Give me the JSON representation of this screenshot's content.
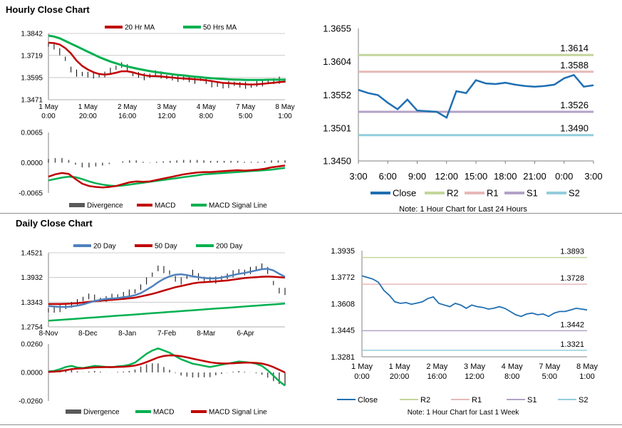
{
  "hourly_title": "Hourly Close Chart",
  "daily_title": "Daily Close Chart",
  "colors": {
    "close": "#1f6fb2",
    "r2": "#c3d69b",
    "r1": "#e6b9b8",
    "s1": "#b3a2c7",
    "s2": "#93cddd",
    "red": "#c00000",
    "green": "#00b050",
    "blue": "#4f81bd",
    "bars": "#000000",
    "divergence": "#595959"
  },
  "chart_data": [
    {
      "id": "hourly_price",
      "type": "line",
      "legend": [
        "20 Hr MA",
        "50 Hrs MA"
      ],
      "yticks": [
        "1.3842",
        "1.3719",
        "1.3595",
        "1.3471"
      ],
      "ylim": [
        1.3471,
        1.3842
      ],
      "xticks": [
        [
          "1 May",
          "0:00"
        ],
        [
          "1 May",
          "20:00"
        ],
        [
          "2 May",
          "16:00"
        ],
        [
          "3 May",
          "12:00"
        ],
        [
          "4 May",
          "8:00"
        ],
        [
          "7 May",
          "5:00"
        ],
        [
          "8 May",
          "1:00"
        ]
      ],
      "series": [
        {
          "name": "Close",
          "values": [
            1.378,
            1.3768,
            1.374,
            1.37,
            1.364,
            1.362,
            1.3615,
            1.3612,
            1.361,
            1.3608,
            1.3612,
            1.363,
            1.365,
            1.3665,
            1.365,
            1.3615,
            1.361,
            1.36,
            1.3605,
            1.362,
            1.361,
            1.3598,
            1.3595,
            1.359,
            1.3592,
            1.3585,
            1.358,
            1.3588,
            1.3575,
            1.356,
            1.3555,
            1.355,
            1.3556,
            1.356,
            1.3555,
            1.3552,
            1.355,
            1.356,
            1.3565,
            1.357,
            1.3575,
            1.358,
            1.3578
          ]
        },
        {
          "name": "20 Hr MA",
          "values": [
            1.379,
            1.3788,
            1.378,
            1.376,
            1.373,
            1.369,
            1.366,
            1.364,
            1.3625,
            1.3615,
            1.3612,
            1.3615,
            1.3622,
            1.363,
            1.363,
            1.3624,
            1.3615,
            1.3608,
            1.3604,
            1.3603,
            1.3602,
            1.3598,
            1.3595,
            1.3592,
            1.359,
            1.3588,
            1.3585,
            1.3583,
            1.358,
            1.3575,
            1.357,
            1.3565,
            1.3563,
            1.3561,
            1.3559,
            1.3557,
            1.3556,
            1.3557,
            1.356,
            1.3563,
            1.3566,
            1.357,
            1.3572
          ]
        },
        {
          "name": "50 Hrs MA",
          "values": [
            1.383,
            1.3825,
            1.3815,
            1.38,
            1.3785,
            1.377,
            1.3755,
            1.374,
            1.3725,
            1.371,
            1.3697,
            1.3685,
            1.3675,
            1.3665,
            1.3657,
            1.365,
            1.3643,
            1.3637,
            1.3631,
            1.3626,
            1.3622,
            1.3618,
            1.3614,
            1.361,
            1.3607,
            1.3603,
            1.36,
            1.3597,
            1.3594,
            1.3591,
            1.3589,
            1.3587,
            1.3585,
            1.3584,
            1.3583,
            1.3582,
            1.3582,
            1.3582,
            1.3582,
            1.3583,
            1.3583,
            1.3583,
            1.3583
          ]
        }
      ]
    },
    {
      "id": "hourly_macd",
      "type": "line",
      "legend": [
        "Divergence",
        "MACD",
        "MACD Signal Line"
      ],
      "yticks": [
        "0.0065",
        "0.0000",
        "-0.0065"
      ],
      "ylim": [
        -0.0065,
        0.0065
      ],
      "series": [
        {
          "name": "MACD",
          "values": [
            -0.003,
            -0.0025,
            -0.0022,
            -0.0024,
            -0.0035,
            -0.0045,
            -0.005,
            -0.0052,
            -0.0053,
            -0.0052,
            -0.005,
            -0.0046,
            -0.0042,
            -0.004,
            -0.0041,
            -0.004,
            -0.0037,
            -0.0034,
            -0.0031,
            -0.0028,
            -0.0025,
            -0.0023,
            -0.0021,
            -0.002,
            -0.002,
            -0.0019,
            -0.0018,
            -0.0017,
            -0.0016,
            -0.0017,
            -0.0016,
            -0.0015,
            -0.0013,
            -0.001,
            -0.0008,
            -0.0006
          ]
        },
        {
          "name": "MACD Signal Line",
          "values": [
            -0.0038,
            -0.0035,
            -0.0032,
            -0.003,
            -0.0031,
            -0.0035,
            -0.004,
            -0.0044,
            -0.0047,
            -0.0049,
            -0.005,
            -0.0049,
            -0.0047,
            -0.0045,
            -0.0043,
            -0.0041,
            -0.0039,
            -0.0037,
            -0.0035,
            -0.0033,
            -0.0031,
            -0.0029,
            -0.0027,
            -0.0025,
            -0.0024,
            -0.0023,
            -0.0022,
            -0.0021,
            -0.002,
            -0.0019,
            -0.0018,
            -0.0017,
            -0.0016,
            -0.0015,
            -0.0013,
            -0.0011
          ]
        },
        {
          "name": "Divergence",
          "values": [
            0.0008,
            0.001,
            0.001,
            0.0006,
            -0.0004,
            -0.001,
            -0.001,
            -0.0008,
            -0.0006,
            -0.0003,
            0.0,
            0.0003,
            0.0005,
            0.0005,
            0.0002,
            0.0001,
            0.0002,
            0.0003,
            0.0004,
            0.0005,
            0.0006,
            0.0006,
            0.0006,
            0.0005,
            0.0004,
            0.0004,
            0.0004,
            0.0004,
            0.0004,
            0.0002,
            0.0002,
            0.0002,
            0.0003,
            0.0005,
            0.0005,
            0.0005
          ]
        }
      ]
    },
    {
      "id": "hourly_24h",
      "type": "line",
      "yticks": [
        "1.3655",
        "1.3604",
        "1.3552",
        "1.3501",
        "1.3450"
      ],
      "ylim": [
        1.345,
        1.3655
      ],
      "xticks": [
        "3:00",
        "6:00",
        "9:00",
        "12:00",
        "15:00",
        "18:00",
        "21:00",
        "0:00",
        "3:00"
      ],
      "levels": [
        {
          "name": "R2",
          "value": 1.3614,
          "label": "1.3614"
        },
        {
          "name": "R1",
          "value": 1.3588,
          "label": "1.3588"
        },
        {
          "name": "S1",
          "value": 1.3526,
          "label": "1.3526"
        },
        {
          "name": "S2",
          "value": 1.349,
          "label": "1.3490"
        }
      ],
      "series": [
        {
          "name": "Close",
          "values": [
            1.356,
            1.3555,
            1.3552,
            1.354,
            1.353,
            1.3545,
            1.3528,
            1.3527,
            1.3526,
            1.3517,
            1.3558,
            1.3555,
            1.3575,
            1.357,
            1.3569,
            1.3571,
            1.3568,
            1.3566,
            1.3565,
            1.3566,
            1.3568,
            1.3578,
            1.3583,
            1.3565,
            1.3567
          ]
        }
      ],
      "legend": [
        "Close",
        "R2",
        "R1",
        "S1",
        "S2"
      ],
      "note": "Note: 1 Hour Chart for Last 24 Hours"
    },
    {
      "id": "daily_price",
      "type": "line",
      "legend": [
        "20 Day",
        "50 Day",
        "200 Day"
      ],
      "yticks": [
        "1.4521",
        "1.3932",
        "1.3343",
        "1.2754"
      ],
      "ylim": [
        1.2754,
        1.4521
      ],
      "xticks": [
        "8-Nov",
        "8-Dec",
        "8-Jan",
        "7-Feb",
        "8-Mar",
        "6-Apr"
      ],
      "series": [
        {
          "name": "Close",
          "values": [
            1.315,
            1.316,
            1.319,
            1.323,
            1.328,
            1.333,
            1.342,
            1.348,
            1.344,
            1.34,
            1.342,
            1.346,
            1.348,
            1.352,
            1.356,
            1.36,
            1.37,
            1.385,
            1.4,
            1.415,
            1.412,
            1.405,
            1.39,
            1.385,
            1.395,
            1.405,
            1.395,
            1.39,
            1.388,
            1.387,
            1.392,
            1.396,
            1.402,
            1.408,
            1.405,
            1.41,
            1.415,
            1.42,
            1.41,
            1.38,
            1.362,
            1.36
          ]
        },
        {
          "name": "20 Day",
          "values": [
            1.325,
            1.324,
            1.323,
            1.323,
            1.324,
            1.326,
            1.329,
            1.333,
            1.337,
            1.34,
            1.342,
            1.343,
            1.344,
            1.346,
            1.348,
            1.351,
            1.356,
            1.364,
            1.372,
            1.382,
            1.39,
            1.396,
            1.4,
            1.401,
            1.399,
            1.396,
            1.394,
            1.392,
            1.391,
            1.391,
            1.393,
            1.396,
            1.399,
            1.402,
            1.404,
            1.407,
            1.41,
            1.413,
            1.414,
            1.41,
            1.402,
            1.395
          ]
        },
        {
          "name": "50 Day",
          "values": [
            1.33,
            1.33,
            1.33,
            1.3305,
            1.331,
            1.332,
            1.3335,
            1.335,
            1.3365,
            1.338,
            1.339,
            1.34,
            1.341,
            1.342,
            1.3435,
            1.345,
            1.348,
            1.351,
            1.354,
            1.358,
            1.362,
            1.366,
            1.37,
            1.373,
            1.376,
            1.379,
            1.381,
            1.382,
            1.383,
            1.384,
            1.385,
            1.386,
            1.388,
            1.39,
            1.392,
            1.393,
            1.394,
            1.395,
            1.3955,
            1.395,
            1.394,
            1.393
          ]
        },
        {
          "name": "200 Day",
          "values": [
            1.29,
            1.291,
            1.292,
            1.293,
            1.294,
            1.295,
            1.296,
            1.297,
            1.298,
            1.299,
            1.3,
            1.301,
            1.302,
            1.303,
            1.304,
            1.305,
            1.306,
            1.307,
            1.308,
            1.309,
            1.31,
            1.311,
            1.312,
            1.313,
            1.314,
            1.315,
            1.316,
            1.317,
            1.318,
            1.319,
            1.32,
            1.321,
            1.322,
            1.323,
            1.324,
            1.325,
            1.326,
            1.327,
            1.328,
            1.329,
            1.33,
            1.331
          ]
        }
      ]
    },
    {
      "id": "daily_macd",
      "type": "line",
      "legend": [
        "Divergence",
        "MACD",
        "MACD Signal Line"
      ],
      "yticks": [
        "0.0260",
        "0.0000",
        "-0.0260"
      ],
      "ylim": [
        -0.026,
        0.026
      ],
      "series": [
        {
          "name": "MACD",
          "values": [
            0.001,
            0.0015,
            0.003,
            0.005,
            0.006,
            0.0045,
            0.004,
            0.005,
            0.006,
            0.0055,
            0.005,
            0.0048,
            0.0055,
            0.006,
            0.007,
            0.009,
            0.013,
            0.017,
            0.02,
            0.022,
            0.02,
            0.018,
            0.015,
            0.012,
            0.01,
            0.008,
            0.007,
            0.006,
            0.005,
            0.006,
            0.007,
            0.008,
            0.009,
            0.01,
            0.0095,
            0.009,
            0.008,
            0.006,
            0.002,
            -0.003,
            -0.008,
            -0.012
          ]
        },
        {
          "name": "MACD Signal Line",
          "values": [
            0.0005,
            0.0007,
            0.0012,
            0.002,
            0.003,
            0.0035,
            0.0038,
            0.0042,
            0.0046,
            0.0048,
            0.0049,
            0.0049,
            0.005,
            0.0052,
            0.0056,
            0.0063,
            0.0076,
            0.0095,
            0.0116,
            0.0137,
            0.015,
            0.0156,
            0.0155,
            0.0148,
            0.0138,
            0.0126,
            0.0115,
            0.0104,
            0.0093,
            0.0086,
            0.0083,
            0.0082,
            0.0084,
            0.0087,
            0.0089,
            0.0089,
            0.0087,
            0.0081,
            0.0068,
            0.0049,
            0.0025,
            0.0
          ]
        },
        {
          "name": "Divergence",
          "values": [
            0.0005,
            0.0008,
            0.0018,
            0.003,
            0.003,
            0.001,
            0.0002,
            0.0008,
            0.0014,
            0.0007,
            0.0001,
            -0.0001,
            0.0005,
            0.0008,
            0.0014,
            0.0027,
            0.0054,
            0.0075,
            0.0084,
            0.0083,
            0.005,
            0.0024,
            -0.0005,
            -0.0028,
            -0.0038,
            -0.0046,
            -0.0045,
            -0.0044,
            -0.0043,
            -0.0026,
            -0.0013,
            -0.0002,
            0.0006,
            0.0013,
            0.0006,
            0.0001,
            -0.0007,
            -0.0021,
            -0.0048,
            -0.0079,
            -0.0105,
            -0.012
          ]
        }
      ]
    },
    {
      "id": "hourly_week",
      "type": "line",
      "yticks": [
        "1.3935",
        "1.3772",
        "1.3608",
        "1.3445",
        "1.3281"
      ],
      "ylim": [
        1.3281,
        1.3935
      ],
      "xticks": [
        [
          "1 May",
          "0:00"
        ],
        [
          "1 May",
          "20:00"
        ],
        [
          "2 May",
          "16:00"
        ],
        [
          "3 May",
          "12:00"
        ],
        [
          "4 May",
          "8:00"
        ],
        [
          "7 May",
          "5:00"
        ],
        [
          "8 May",
          "1:00"
        ]
      ],
      "levels": [
        {
          "name": "R2",
          "value": 1.3893,
          "label": "1.3893"
        },
        {
          "name": "R1",
          "value": 1.3728,
          "label": "1.3728"
        },
        {
          "name": "S1",
          "value": 1.3442,
          "label": "1.3442"
        },
        {
          "name": "S2",
          "value": 1.3321,
          "label": "1.3321"
        }
      ],
      "series": [
        {
          "name": "Close",
          "values": [
            1.378,
            1.377,
            1.376,
            1.374,
            1.369,
            1.366,
            1.362,
            1.361,
            1.3615,
            1.3605,
            1.3612,
            1.362,
            1.364,
            1.365,
            1.361,
            1.36,
            1.359,
            1.361,
            1.36,
            1.358,
            1.36,
            1.359,
            1.3585,
            1.3575,
            1.358,
            1.359,
            1.358,
            1.356,
            1.354,
            1.353,
            1.3545,
            1.355,
            1.354,
            1.3545,
            1.353,
            1.355,
            1.356,
            1.356,
            1.357,
            1.358,
            1.3575,
            1.357
          ]
        }
      ],
      "legend": [
        "Close",
        "R2",
        "R1",
        "S1",
        "S2"
      ],
      "note": "Note: 1 Hour Chart for Last 1 Week"
    }
  ]
}
